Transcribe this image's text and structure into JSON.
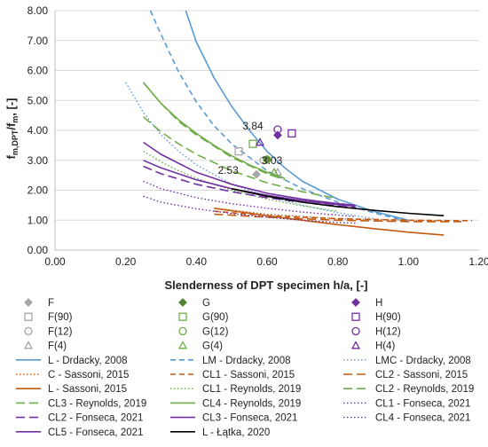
{
  "chart_data": {
    "type": "scatter",
    "title": "",
    "xlabel": "Slenderness of DPT specimen h/a, [-]",
    "ylabel": {
      "main": "f",
      "sub1": "m,DPT",
      "mid": "/f",
      "sub2": "m",
      "unit": ", [-]"
    },
    "xlim": [
      0.0,
      1.2
    ],
    "ylim": [
      0.0,
      8.0
    ],
    "xticks": [
      "0.00",
      "0.20",
      "0.40",
      "0.60",
      "0.80",
      "1.00",
      "1.20"
    ],
    "yticks": [
      "0.00",
      "1.00",
      "2.00",
      "3.00",
      "4.00",
      "5.00",
      "6.00",
      "7.00",
      "8.00"
    ],
    "grid": "horizontal",
    "legend_position": "bottom",
    "annotations": [
      {
        "text": "3.84",
        "x": 0.56,
        "y": 4.03
      },
      {
        "text": "2.53",
        "x": 0.49,
        "y": 2.55
      },
      {
        "text": "3.03",
        "x": 0.614,
        "y": 2.88
      }
    ],
    "series": [
      {
        "name": "F",
        "kind": "marker",
        "marker": "diamond",
        "filled": true,
        "color": "#a6a6a6",
        "points": [
          [
            0.57,
            2.53
          ]
        ]
      },
      {
        "name": "G",
        "kind": "marker",
        "marker": "diamond",
        "filled": true,
        "color": "#548235",
        "points": [
          [
            0.6,
            3.03
          ]
        ]
      },
      {
        "name": "H",
        "kind": "marker",
        "marker": "diamond",
        "filled": true,
        "color": "#7030a0",
        "points": [
          [
            0.63,
            3.84
          ]
        ]
      },
      {
        "name": "F(90)",
        "kind": "marker",
        "marker": "square",
        "filled": false,
        "color": "#a6a6a6",
        "points": [
          [
            0.52,
            3.3
          ]
        ]
      },
      {
        "name": "G(90)",
        "kind": "marker",
        "marker": "square",
        "filled": false,
        "color": "#70ad47",
        "points": [
          [
            0.56,
            3.55
          ]
        ]
      },
      {
        "name": "H(90)",
        "kind": "marker",
        "marker": "square",
        "filled": false,
        "color": "#7030a0",
        "points": [
          [
            0.67,
            3.9
          ]
        ]
      },
      {
        "name": "F(12)",
        "kind": "marker",
        "marker": "circle",
        "filled": false,
        "color": "#a6a6a6",
        "points": [
          [
            0.59,
            3.0
          ]
        ]
      },
      {
        "name": "G(12)",
        "kind": "marker",
        "marker": "circle",
        "filled": false,
        "color": "#70ad47",
        "points": [
          [
            0.6,
            3.03
          ]
        ]
      },
      {
        "name": "H(12)",
        "kind": "marker",
        "marker": "circle",
        "filled": false,
        "color": "#7030a0",
        "points": [
          [
            0.63,
            4.03
          ]
        ]
      },
      {
        "name": "F(4)",
        "kind": "marker",
        "marker": "triangle",
        "filled": false,
        "color": "#a6a6a6",
        "points": [
          [
            0.63,
            2.6
          ]
        ]
      },
      {
        "name": "G(4)",
        "kind": "marker",
        "marker": "triangle",
        "filled": false,
        "color": "#70ad47",
        "points": [
          [
            0.62,
            2.6
          ]
        ]
      },
      {
        "name": "H(4)",
        "kind": "marker",
        "marker": "triangle",
        "filled": false,
        "color": "#7030a0",
        "points": [
          [
            0.58,
            3.6
          ]
        ]
      },
      {
        "name": "L - Drdacky, 2008",
        "kind": "line",
        "dash": "solid",
        "color": "#5b9bd5",
        "width": 1.6,
        "points": [
          [
            0.37,
            8.0
          ],
          [
            0.4,
            6.95
          ],
          [
            0.45,
            5.75
          ],
          [
            0.5,
            4.8
          ],
          [
            0.55,
            4.0
          ],
          [
            0.6,
            3.3
          ],
          [
            0.65,
            2.75
          ],
          [
            0.7,
            2.3
          ],
          [
            0.8,
            1.7
          ],
          [
            0.9,
            1.3
          ],
          [
            1.0,
            1.0
          ]
        ]
      },
      {
        "name": "LM - Drdacky, 2008",
        "kind": "line",
        "dash": "dashed",
        "color": "#5b9bd5",
        "width": 1.6,
        "points": [
          [
            0.27,
            8.0
          ],
          [
            0.3,
            7.2
          ],
          [
            0.35,
            5.95
          ],
          [
            0.4,
            4.95
          ],
          [
            0.45,
            4.15
          ],
          [
            0.5,
            3.55
          ],
          [
            0.6,
            2.65
          ],
          [
            0.7,
            2.05
          ],
          [
            0.8,
            1.6
          ],
          [
            0.9,
            1.25
          ],
          [
            1.0,
            0.95
          ]
        ]
      },
      {
        "name": "LMC - Drdacky, 2008",
        "kind": "line",
        "dash": "dotted",
        "color": "#5b9bd5",
        "width": 1.4,
        "points": [
          [
            0.2,
            5.6
          ],
          [
            0.25,
            4.6
          ],
          [
            0.3,
            3.85
          ],
          [
            0.35,
            3.3
          ],
          [
            0.4,
            2.85
          ],
          [
            0.5,
            2.2
          ],
          [
            0.6,
            1.8
          ],
          [
            0.7,
            1.5
          ],
          [
            0.8,
            1.25
          ],
          [
            0.9,
            1.05
          ]
        ]
      },
      {
        "name": "C - Sassoni, 2015",
        "kind": "line",
        "dash": "dotted",
        "color": "#c55a11",
        "width": 1.4,
        "points": [
          [
            0.45,
            1.4
          ],
          [
            0.6,
            1.2
          ],
          [
            0.8,
            1.05
          ],
          [
            1.0,
            1.0
          ],
          [
            1.1,
            0.98
          ]
        ]
      },
      {
        "name": "CL1 - Sassoni, 2015",
        "kind": "line",
        "dash": "dashed",
        "color": "#c55a11",
        "width": 1.6,
        "points": [
          [
            0.45,
            1.3
          ],
          [
            0.6,
            1.15
          ],
          [
            0.8,
            1.05
          ],
          [
            1.0,
            1.0
          ],
          [
            1.18,
            0.98
          ]
        ]
      },
      {
        "name": "CL2 - Sassoni, 2015",
        "kind": "line",
        "dash": "longdash",
        "color": "#c55a11",
        "width": 1.6,
        "points": [
          [
            0.45,
            1.2
          ],
          [
            0.6,
            1.1
          ],
          [
            0.8,
            1.0
          ],
          [
            1.0,
            0.95
          ],
          [
            1.15,
            0.95
          ]
        ]
      },
      {
        "name": "L - Sassoni, 2015",
        "kind": "line",
        "dash": "solid",
        "color": "#c55a11",
        "width": 1.6,
        "points": [
          [
            0.45,
            1.4
          ],
          [
            0.6,
            1.15
          ],
          [
            0.7,
            1.0
          ],
          [
            0.8,
            0.85
          ],
          [
            0.9,
            0.72
          ],
          [
            1.0,
            0.6
          ],
          [
            1.1,
            0.5
          ]
        ]
      },
      {
        "name": "CL1 - Reynolds, 2019",
        "kind": "line",
        "dash": "dotted",
        "color": "#70ad47",
        "width": 1.4,
        "points": [
          [
            0.25,
            3.3
          ],
          [
            0.3,
            2.95
          ],
          [
            0.35,
            2.65
          ],
          [
            0.4,
            2.4
          ],
          [
            0.5,
            2.0
          ],
          [
            0.6,
            1.7
          ],
          [
            0.7,
            1.48
          ],
          [
            0.8,
            1.3
          ]
        ]
      },
      {
        "name": "CL2 - Reynolds, 2019",
        "kind": "line",
        "dash": "longdash",
        "color": "#70ad47",
        "width": 1.6,
        "points": [
          [
            0.25,
            4.45
          ],
          [
            0.3,
            3.95
          ],
          [
            0.35,
            3.55
          ],
          [
            0.4,
            3.2
          ],
          [
            0.5,
            2.65
          ],
          [
            0.6,
            2.25
          ],
          [
            0.7,
            1.95
          ],
          [
            0.8,
            1.72
          ]
        ]
      },
      {
        "name": "CL3 - Reynolds, 2019",
        "kind": "line",
        "dash": "longdash",
        "color": "#70ad47",
        "width": 1.6,
        "points": [
          [
            0.25,
            5.6
          ],
          [
            0.3,
            4.9
          ],
          [
            0.35,
            4.3
          ],
          [
            0.4,
            3.85
          ],
          [
            0.5,
            3.1
          ],
          [
            0.6,
            2.55
          ],
          [
            0.65,
            2.35
          ]
        ]
      },
      {
        "name": "CL4 - Reynolds, 2019",
        "kind": "line",
        "dash": "solid",
        "color": "#70ad47",
        "width": 1.6,
        "points": [
          [
            0.25,
            5.6
          ],
          [
            0.3,
            4.9
          ],
          [
            0.35,
            4.35
          ],
          [
            0.4,
            3.9
          ],
          [
            0.45,
            3.5
          ],
          [
            0.5,
            3.15
          ],
          [
            0.55,
            2.85
          ],
          [
            0.6,
            2.6
          ],
          [
            0.65,
            2.4
          ]
        ]
      },
      {
        "name": "CL1 - Fonseca, 2021",
        "kind": "line",
        "dash": "dotted",
        "color": "#7030a0",
        "width": 1.4,
        "points": [
          [
            0.25,
            2.3
          ],
          [
            0.3,
            2.05
          ],
          [
            0.4,
            1.75
          ],
          [
            0.5,
            1.55
          ],
          [
            0.6,
            1.4
          ],
          [
            0.7,
            1.27
          ],
          [
            0.8,
            1.17
          ],
          [
            0.85,
            1.12
          ]
        ]
      },
      {
        "name": "CL2 - Fonseca, 2021",
        "kind": "line",
        "dash": "longdash",
        "color": "#7030a0",
        "width": 1.6,
        "points": [
          [
            0.25,
            2.8
          ],
          [
            0.3,
            2.55
          ],
          [
            0.4,
            2.2
          ],
          [
            0.5,
            1.95
          ],
          [
            0.6,
            1.75
          ],
          [
            0.7,
            1.6
          ],
          [
            0.8,
            1.47
          ],
          [
            0.85,
            1.42
          ]
        ]
      },
      {
        "name": "CL3 - Fonseca, 2021",
        "kind": "line",
        "dash": "solid",
        "color": "#7030a0",
        "width": 1.6,
        "points": [
          [
            0.25,
            3.0
          ],
          [
            0.3,
            2.75
          ],
          [
            0.4,
            2.35
          ],
          [
            0.5,
            2.05
          ],
          [
            0.6,
            1.83
          ],
          [
            0.7,
            1.65
          ],
          [
            0.8,
            1.52
          ],
          [
            0.85,
            1.47
          ]
        ]
      },
      {
        "name": "CL4 - Fonseca, 2021",
        "kind": "line",
        "dash": "dotted",
        "color": "#7030a0",
        "width": 1.4,
        "points": [
          [
            0.25,
            1.8
          ],
          [
            0.3,
            1.6
          ],
          [
            0.4,
            1.38
          ],
          [
            0.5,
            1.22
          ],
          [
            0.6,
            1.1
          ],
          [
            0.7,
            1.0
          ],
          [
            0.8,
            0.92
          ],
          [
            0.85,
            0.9
          ]
        ]
      },
      {
        "name": "CL5 - Fonseca, 2021",
        "kind": "line",
        "dash": "solid",
        "color": "#7030a0",
        "width": 1.6,
        "points": [
          [
            0.25,
            3.6
          ],
          [
            0.3,
            3.2
          ],
          [
            0.4,
            2.6
          ],
          [
            0.5,
            2.2
          ],
          [
            0.6,
            1.9
          ],
          [
            0.7,
            1.7
          ],
          [
            0.8,
            1.55
          ],
          [
            0.85,
            1.5
          ]
        ]
      },
      {
        "name": "L - Łątka, 2020",
        "kind": "line",
        "dash": "solid",
        "color": "#000000",
        "width": 1.6,
        "points": [
          [
            0.5,
            2.05
          ],
          [
            0.6,
            1.8
          ],
          [
            0.7,
            1.6
          ],
          [
            0.8,
            1.45
          ],
          [
            0.9,
            1.33
          ],
          [
            1.0,
            1.23
          ],
          [
            1.1,
            1.15
          ]
        ]
      }
    ]
  }
}
